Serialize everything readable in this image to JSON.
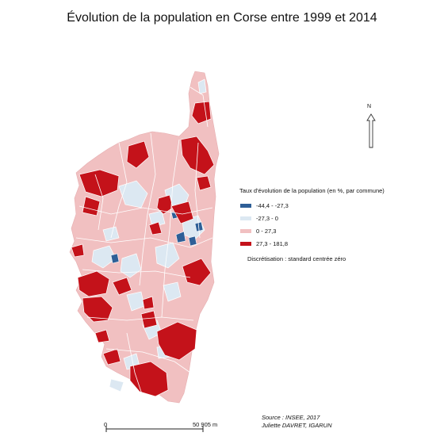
{
  "title": "Évolution de la population en Corse entre 1999 et 2014",
  "legend": {
    "title": "Taux d'évolution de la population (en %, par commune)",
    "items": [
      {
        "label": "-44,4 - -27,3",
        "color": "#2e5f97"
      },
      {
        "label": "-27,3 - 0",
        "color": "#dce8f2"
      },
      {
        "label": "0 - 27,3",
        "color": "#f1c0c1"
      },
      {
        "label": "27,3 - 181,8",
        "color": "#c4121a"
      }
    ]
  },
  "discretisation": "Discrétisation : standard centrée zéro",
  "north_label": "N",
  "scale": {
    "start": "0",
    "end": "50 905 m"
  },
  "source": {
    "line1": "Source : INSEE, 2017",
    "line2": "Juliette DAVRET, IGARUN"
  },
  "colors": {
    "island_base": "#f1c0c1",
    "borders": "#ffffff"
  }
}
